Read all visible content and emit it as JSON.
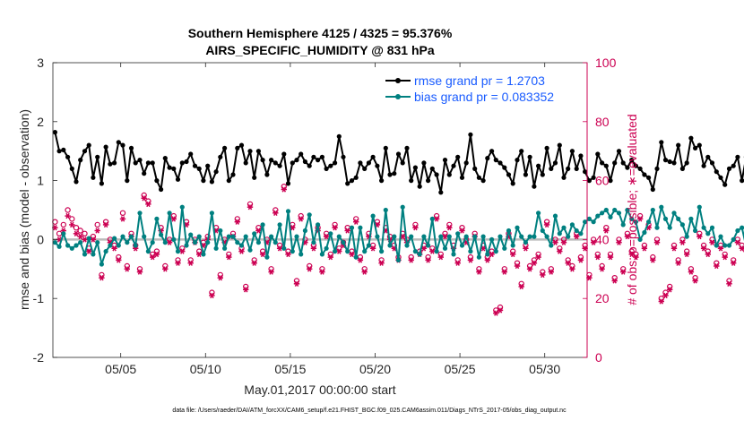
{
  "chart_data": {
    "type": "line",
    "title_line1": "Southern Hemisphere 4125 / 4325 = 95.376%",
    "title_line2": "AIRS_SPECIFIC_HUMIDITY @ 831 hPa",
    "xlabel": "May.01,2017 00:00:00 start",
    "ylabel_left": "rmse and bias (model - observation)",
    "ylabel_right": "# of obs: o=possible; ∗=evaluated",
    "footnote": "data file: /Users/raeder/DAI/ATM_forcXX/CAM6_setup/f.e21.FHIST_BGC.f09_025.CAM6assim.011/Diags_NTrS_2017-05/obs_diag_output.nc",
    "xlim": [
      1,
      32.5
    ],
    "ylim_left": [
      -2,
      3
    ],
    "ylim_right": [
      0,
      100
    ],
    "x_ticks": [
      5,
      10,
      15,
      20,
      25,
      30
    ],
    "x_tick_labels": [
      "05/05",
      "05/10",
      "05/15",
      "05/20",
      "05/25",
      "05/30"
    ],
    "y_left_ticks": [
      -2,
      -1,
      0,
      1,
      2,
      3
    ],
    "y_right_ticks": [
      0,
      20,
      40,
      60,
      80,
      100
    ],
    "colors": {
      "rmse": "#000000",
      "bias": "#008080",
      "obs": "#cc0052",
      "zero_line": "#bbbbbb",
      "legend_text": "#1a5cff"
    },
    "legend": [
      {
        "label": "rmse grand pr = 1.2703",
        "color": "#000000"
      },
      {
        "label": "bias grand pr = 0.083352",
        "color": "#008080"
      }
    ],
    "series": [
      {
        "name": "rmse",
        "x_start": 1.125,
        "x_step": 0.25,
        "values": [
          1.82,
          1.5,
          1.52,
          1.4,
          1.2,
          0.98,
          1.35,
          1.5,
          1.6,
          1.05,
          1.4,
          0.95,
          1.57,
          1.28,
          1.3,
          1.65,
          1.6,
          1.0,
          1.55,
          1.3,
          1.35,
          1.12,
          1.3,
          1.3,
          1.0,
          0.85,
          1.38,
          1.22,
          1.2,
          1.02,
          1.3,
          1.32,
          1.45,
          1.25,
          1.2,
          1.0,
          1.25,
          0.98,
          1.15,
          1.4,
          1.55,
          1.0,
          1.1,
          1.55,
          1.6,
          1.3,
          1.5,
          1.05,
          1.5,
          1.35,
          1.1,
          1.35,
          1.3,
          1.25,
          1.45,
          0.95,
          1.3,
          1.35,
          1.45,
          1.32,
          1.25,
          1.4,
          1.35,
          1.4,
          1.2,
          1.25,
          1.3,
          1.75,
          1.4,
          0.95,
          1.0,
          1.05,
          1.3,
          1.2,
          1.3,
          1.4,
          1.25,
          1.0,
          1.55,
          1.1,
          1.12,
          1.45,
          1.3,
          1.55,
          1.0,
          1.22,
          0.9,
          1.3,
          1.0,
          1.2,
          1.1,
          0.8,
          1.35,
          1.1,
          1.25,
          1.4,
          1.05,
          1.3,
          1.78,
          1.2,
          1.05,
          1.0,
          1.38,
          1.5,
          1.35,
          1.3,
          1.22,
          1.1,
          0.95,
          1.35,
          1.5,
          1.1,
          1.4,
          0.9,
          1.25,
          1.1,
          1.55,
          1.2,
          1.3,
          1.6,
          1.05,
          1.2,
          1.5,
          1.2,
          1.42,
          1.15,
          1.0,
          1.05,
          1.45,
          1.3,
          1.25,
          1.0,
          1.3,
          1.5,
          1.3,
          1.22,
          1.35,
          1.25,
          1.2,
          1.1,
          1.05,
          0.85,
          1.2,
          1.65,
          1.35,
          1.32,
          1.3,
          1.6,
          1.2,
          1.3,
          1.72,
          1.55,
          1.6,
          1.25,
          1.4,
          1.3,
          1.15,
          1.05,
          0.93,
          1.2,
          1.25,
          1.4,
          1.0,
          1.4,
          1.3
        ]
      },
      {
        "name": "bias",
        "x_start": 1.125,
        "x_step": 0.25,
        "values": [
          -0.05,
          -0.12,
          0.1,
          -0.1,
          -0.15,
          -0.1,
          -0.05,
          -0.25,
          0.02,
          -0.25,
          -0.05,
          -0.42,
          -0.2,
          -0.1,
          0.02,
          -0.1,
          0.05,
          -0.05,
          0.05,
          -0.1,
          0.45,
          0.05,
          -0.2,
          -0.05,
          0.35,
          0.08,
          -0.05,
          0.45,
          0.0,
          -0.2,
          0.55,
          -0.1,
          0.08,
          -0.05,
          0.05,
          -0.25,
          -0.05,
          0.45,
          -0.15,
          0.15,
          -0.15,
          0.05,
          0.05,
          -0.05,
          -0.1,
          0.05,
          -0.18,
          0.1,
          -0.05,
          0.25,
          -0.3,
          0.05,
          -0.05,
          0.25,
          -0.15,
          0.48,
          -0.2,
          0.05,
          -0.25,
          0.15,
          0.42,
          -0.05,
          0.25,
          -0.25,
          -0.15,
          0.1,
          -0.2,
          0.05,
          -0.05,
          -0.2,
          0.2,
          -0.3,
          0.2,
          -0.2,
          -0.1,
          0.4,
          0.05,
          -0.2,
          0.5,
          -0.1,
          0.05,
          -0.35,
          0.55,
          -0.1,
          0.05,
          -0.2,
          -0.25,
          0.05,
          -0.1,
          0.35,
          -0.2,
          0.05,
          -0.15,
          0.05,
          -0.25,
          0.1,
          -0.1,
          0.05,
          -0.2,
          0.05,
          -0.3,
          0.05,
          -0.25,
          0.0,
          -0.2,
          0.05,
          -0.15,
          0.15,
          -0.1,
          0.2,
          0.05,
          -0.05,
          0.05,
          0.05,
          0.45,
          0.15,
          0.05,
          -0.1,
          0.4,
          0.1,
          0.2,
          0.05,
          0.25,
          0.15,
          0.1,
          0.3,
          0.35,
          0.3,
          0.4,
          0.45,
          0.5,
          0.38,
          0.5,
          0.45,
          0.25,
          0.5,
          0.35,
          0.3,
          0.0,
          0.12,
          0.3,
          0.5,
          0.2,
          0.55,
          0.35,
          0.2,
          0.45,
          0.35,
          0.25,
          0.05,
          0.35,
          0.15,
          0.55,
          0.2,
          0.1,
          0.2,
          -0.1,
          0.05,
          -0.1,
          -0.1,
          0.0,
          0.15,
          0.2,
          -0.12
        ]
      },
      {
        "name": "obs_possible",
        "x_start": 1.125,
        "x_step": 0.25,
        "values": [
          46,
          42,
          45,
          50,
          47,
          44,
          43,
          42,
          37,
          41,
          45,
          28,
          46,
          40,
          38,
          34,
          49,
          31,
          42,
          38,
          30,
          55,
          53,
          35,
          36,
          44,
          31,
          40,
          48,
          33,
          37,
          46,
          33,
          40,
          36,
          39,
          41,
          22,
          44,
          28,
          40,
          35,
          42,
          47,
          37,
          24,
          52,
          33,
          44,
          36,
          40,
          30,
          50,
          38,
          58,
          36,
          45,
          26,
          48,
          40,
          31,
          38,
          44,
          30,
          42,
          35,
          45,
          37,
          39,
          44,
          36,
          47,
          34,
          30,
          42,
          38,
          46,
          33,
          44,
          41,
          38,
          34,
          42,
          40,
          34,
          45,
          36,
          38,
          34,
          37,
          48,
          35,
          42,
          45,
          38,
          33,
          44,
          40,
          34,
          42,
          30,
          38,
          34,
          36,
          16,
          17,
          30,
          42,
          36,
          32,
          25,
          38,
          31,
          33,
          35,
          29,
          46,
          30,
          40,
          37,
          40,
          33,
          31,
          42,
          34,
          38,
          28,
          40,
          35,
          31,
          44,
          35,
          27,
          40,
          30,
          42,
          36,
          35,
          48,
          38,
          45,
          34,
          40,
          20,
          22,
          24,
          38,
          33,
          40,
          36,
          30,
          27,
          42,
          38,
          36,
          40,
          32,
          38,
          35,
          26,
          33,
          40,
          38,
          37,
          26,
          40,
          26,
          0
        ]
      },
      {
        "name": "obs_evaluated",
        "x_start": 1.125,
        "x_step": 0.25,
        "values": [
          44,
          40,
          43,
          48,
          45,
          42,
          41,
          40,
          36,
          40,
          43,
          27,
          45,
          39,
          37,
          33,
          47,
          30,
          41,
          37,
          29,
          54,
          52,
          34,
          35,
          43,
          30,
          39,
          47,
          32,
          36,
          45,
          32,
          39,
          35,
          38,
          40,
          21,
          43,
          27,
          39,
          34,
          41,
          46,
          36,
          23,
          51,
          32,
          43,
          35,
          39,
          29,
          49,
          37,
          57,
          35,
          44,
          25,
          47,
          39,
          30,
          37,
          43,
          29,
          41,
          34,
          44,
          36,
          38,
          43,
          35,
          46,
          33,
          29,
          41,
          37,
          45,
          32,
          43,
          40,
          37,
          33,
          41,
          39,
          33,
          44,
          35,
          37,
          33,
          36,
          47,
          34,
          41,
          44,
          37,
          32,
          43,
          39,
          33,
          41,
          29,
          37,
          33,
          35,
          15,
          16,
          29,
          41,
          35,
          31,
          24,
          37,
          30,
          32,
          34,
          28,
          45,
          29,
          39,
          36,
          39,
          32,
          30,
          41,
          33,
          37,
          27,
          39,
          34,
          30,
          43,
          34,
          26,
          39,
          29,
          41,
          35,
          34,
          47,
          37,
          44,
          33,
          39,
          19,
          21,
          23,
          37,
          32,
          39,
          35,
          29,
          26,
          41,
          37,
          35,
          39,
          31,
          37,
          34,
          25,
          32,
          39,
          37,
          36,
          25,
          39,
          25,
          0
        ]
      }
    ]
  }
}
